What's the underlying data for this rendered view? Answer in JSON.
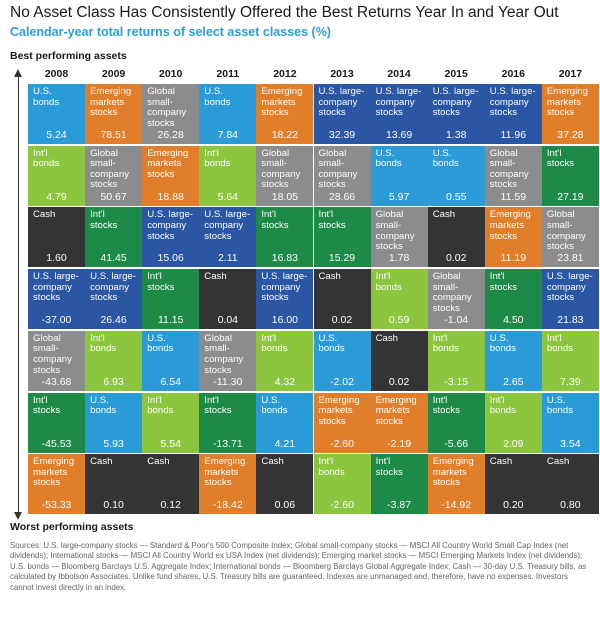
{
  "header": {
    "title": "No Asset Class Has Consistently Offered the Best Returns Year In and Year Out",
    "subtitle": "Calendar-year total returns of select asset classes (%)",
    "best_label": "Best performing assets",
    "worst_label": "Worst performing assets"
  },
  "colors": {
    "us_bonds": "#2b9bd8",
    "emerging": "#e07e2a",
    "global_small": "#8a8c8e",
    "us_large": "#2a56a3",
    "intl_bonds": "#8cc63f",
    "intl_stocks": "#1d8a47",
    "cash": "#333435"
  },
  "chart_data": {
    "type": "table",
    "years": [
      "2008",
      "2009",
      "2010",
      "2011",
      "2012",
      "2013",
      "2014",
      "2015",
      "2016",
      "2017"
    ],
    "columns": [
      [
        {
          "asset": "U.S. bonds",
          "label": "U.S.\nbonds",
          "value": "5.24"
        },
        {
          "asset": "Int'l bonds",
          "label": "Int'l\nbonds",
          "value": "4.79"
        },
        {
          "asset": "Cash",
          "label": "Cash",
          "value": "1.60"
        },
        {
          "asset": "U.S. large-company stocks",
          "label": "U.S. large-\ncompany\nstocks",
          "value": "-37.00"
        },
        {
          "asset": "Global small-company stocks",
          "label": "Global\nsmall-\ncompany\nstocks",
          "value": "-43.68"
        },
        {
          "asset": "Int'l stocks",
          "label": "Int'l\nstocks",
          "value": "-45.53"
        },
        {
          "asset": "Emerging markets stocks",
          "label": "Emerging\nmarkets\nstocks",
          "value": "-53.33"
        }
      ],
      [
        {
          "asset": "Emerging markets stocks",
          "label": "Emerging\nmarkets\nstocks",
          "value": "78.51"
        },
        {
          "asset": "Global small-company stocks",
          "label": "Global\nsmall-\ncompany\nstocks",
          "value": "50.67"
        },
        {
          "asset": "Int'l stocks",
          "label": "Int'l\nstocks",
          "value": "41.45"
        },
        {
          "asset": "U.S. large-company stocks",
          "label": "U.S. large-\ncompany\nstocks",
          "value": "26.46"
        },
        {
          "asset": "Int'l bonds",
          "label": "Int'l\nbonds",
          "value": "6.93"
        },
        {
          "asset": "U.S. bonds",
          "label": "U.S.\nbonds",
          "value": "5.93"
        },
        {
          "asset": "Cash",
          "label": "Cash",
          "value": "0.10"
        }
      ],
      [
        {
          "asset": "Global small-company stocks",
          "label": "Global\nsmall-\ncompany\nstocks",
          "value": "26.28"
        },
        {
          "asset": "Emerging markets stocks",
          "label": "Emerging\nmarkets\nstocks",
          "value": "18.88"
        },
        {
          "asset": "U.S. large-company stocks",
          "label": "U.S. large-\ncompany\nstocks",
          "value": "15.06"
        },
        {
          "asset": "Int'l stocks",
          "label": "Int'l\nstocks",
          "value": "11.15"
        },
        {
          "asset": "U.S. bonds",
          "label": "U.S.\nbonds",
          "value": "6.54"
        },
        {
          "asset": "Int'l bonds",
          "label": "Int'l\nbonds",
          "value": "5.54"
        },
        {
          "asset": "Cash",
          "label": "Cash",
          "value": "0.12"
        }
      ],
      [
        {
          "asset": "U.S. bonds",
          "label": "U.S.\nbonds",
          "value": "7.84"
        },
        {
          "asset": "Int'l bonds",
          "label": "Int'l\nbonds",
          "value": "5.64"
        },
        {
          "asset": "U.S. large-company stocks",
          "label": "U.S. large-\ncompany\nstocks",
          "value": "2.11"
        },
        {
          "asset": "Cash",
          "label": "Cash",
          "value": "0.04"
        },
        {
          "asset": "Global small-company stocks",
          "label": "Global\nsmall-\ncompany\nstocks",
          "value": "-11.30"
        },
        {
          "asset": "Int'l stocks",
          "label": "Int'l\nstocks",
          "value": "-13.71"
        },
        {
          "asset": "Emerging markets stocks",
          "label": "Emerging\nmarkets\nstocks",
          "value": "-18.42"
        }
      ],
      [
        {
          "asset": "Emerging markets stocks",
          "label": "Emerging\nmarkets\nstocks",
          "value": "18.22"
        },
        {
          "asset": "Global small-company stocks",
          "label": "Global\nsmall-\ncompany\nstocks",
          "value": "18.05"
        },
        {
          "asset": "Int'l stocks",
          "label": "Int'l\nstocks",
          "value": "16.83"
        },
        {
          "asset": "U.S. large-company stocks",
          "label": "U.S. large-\ncompany\nstocks",
          "value": "16.00"
        },
        {
          "asset": "Int'l bonds",
          "label": "Int'l\nbonds",
          "value": "4.32"
        },
        {
          "asset": "U.S. bonds",
          "label": "U.S.\nbonds",
          "value": "4.21"
        },
        {
          "asset": "Cash",
          "label": "Cash",
          "value": "0.06"
        }
      ],
      [
        {
          "asset": "U.S. large-company stocks",
          "label": "U.S. large-\ncompany\nstocks",
          "value": "32.39"
        },
        {
          "asset": "Global small-company stocks",
          "label": "Global\nsmall-\ncompany\nstocks",
          "value": "28.66"
        },
        {
          "asset": "Int'l stocks",
          "label": "Int'l\nstocks",
          "value": "15.29"
        },
        {
          "asset": "Cash",
          "label": "Cash",
          "value": "0.02"
        },
        {
          "asset": "U.S. bonds",
          "label": "U.S.\nbonds",
          "value": "-2.02"
        },
        {
          "asset": "Emerging markets stocks",
          "label": "Emerging\nmarkets\nstocks",
          "value": "-2.60"
        },
        {
          "asset": "Int'l bonds",
          "label": "Int'l\nbonds",
          "value": "-2.60"
        }
      ],
      [
        {
          "asset": "U.S. large-company stocks",
          "label": "U.S. large-\ncompany\nstocks",
          "value": "13.69"
        },
        {
          "asset": "U.S. bonds",
          "label": "U.S.\nbonds",
          "value": "5.97"
        },
        {
          "asset": "Global small-company stocks",
          "label": "Global\nsmall-\ncompany\nstocks",
          "value": "1.78"
        },
        {
          "asset": "Int'l bonds",
          "label": "Int'l\nbonds",
          "value": "0.59"
        },
        {
          "asset": "Cash",
          "label": "Cash",
          "value": "0.02"
        },
        {
          "asset": "Emerging markets stocks",
          "label": "Emerging\nmarkets\nstocks",
          "value": "-2.19"
        },
        {
          "asset": "Int'l stocks",
          "label": "Int'l\nstocks",
          "value": "-3.87"
        }
      ],
      [
        {
          "asset": "U.S. large-company stocks",
          "label": "U.S. large-\ncompany\nstocks",
          "value": "1.38"
        },
        {
          "asset": "U.S. bonds",
          "label": "U.S.\nbonds",
          "value": "0.55"
        },
        {
          "asset": "Cash",
          "label": "Cash",
          "value": "0.02"
        },
        {
          "asset": "Global small-company stocks",
          "label": "Global\nsmall-\ncompany\nstocks",
          "value": "-1.04"
        },
        {
          "asset": "Int'l bonds",
          "label": "Int'l\nbonds",
          "value": "-3.15"
        },
        {
          "asset": "Int'l stocks",
          "label": "Int'l\nstocks",
          "value": "-5.66"
        },
        {
          "asset": "Emerging markets stocks",
          "label": "Emerging\nmarkets\nstocks",
          "value": "-14.92"
        }
      ],
      [
        {
          "asset": "U.S. large-company stocks",
          "label": "U.S. large-\ncompany\nstocks",
          "value": "11.96"
        },
        {
          "asset": "Global small-company stocks",
          "label": "Global\nsmall-\ncompany\nstocks",
          "value": "11.59"
        },
        {
          "asset": "Emerging markets stocks",
          "label": "Emerging\nmarkets\nstocks",
          "value": "11.19"
        },
        {
          "asset": "Int'l stocks",
          "label": "Int'l\nstocks",
          "value": "4.50"
        },
        {
          "asset": "U.S. bonds",
          "label": "U.S.\nbonds",
          "value": "2.65"
        },
        {
          "asset": "Int'l bonds",
          "label": "Int'l\nbonds",
          "value": "2.09"
        },
        {
          "asset": "Cash",
          "label": "Cash",
          "value": "0.20"
        }
      ],
      [
        {
          "asset": "Emerging markets stocks",
          "label": "Emerging\nmarkets\nstocks",
          "value": "37.28"
        },
        {
          "asset": "Int'l stocks",
          "label": "Int'l\nstocks",
          "value": "27.19"
        },
        {
          "asset": "Global small-company stocks",
          "label": "Global\nsmall-\ncompany\nstocks",
          "value": "23.81"
        },
        {
          "asset": "U.S. large-company stocks",
          "label": "U.S. large-\ncompany\nstocks",
          "value": "21.83"
        },
        {
          "asset": "Int'l bonds",
          "label": "Int'l\nbonds",
          "value": "7.39"
        },
        {
          "asset": "U.S. bonds",
          "label": "U.S.\nbonds",
          "value": "3.54"
        },
        {
          "asset": "Cash",
          "label": "Cash",
          "value": "0.80"
        }
      ]
    ]
  },
  "footer": {
    "sources": "Sources: U.S. large-company stocks — Standard & Poor's 500 Composite Index; Global small-company stocks — MSCI All Country World Small Cap Index (net dividends); International stocks — MSCI All Country World ex USA Index (net dividends); Emerging market stocks — MSCI Emerging Markets Index (net dividends); U.S. bonds — Bloomberg Barclays U.S. Aggregate Index; International bonds — Bloomberg Barclays Global Aggregate Index; Cash — 30-day U.S. Treasury bills, as calculated by Ibbotson Associates. Unlike fund shares, U.S. Treasury bills are guaranteed. Indexes are unmanaged and, therefore, have no expenses. Investors cannot invest directly in an index."
  }
}
